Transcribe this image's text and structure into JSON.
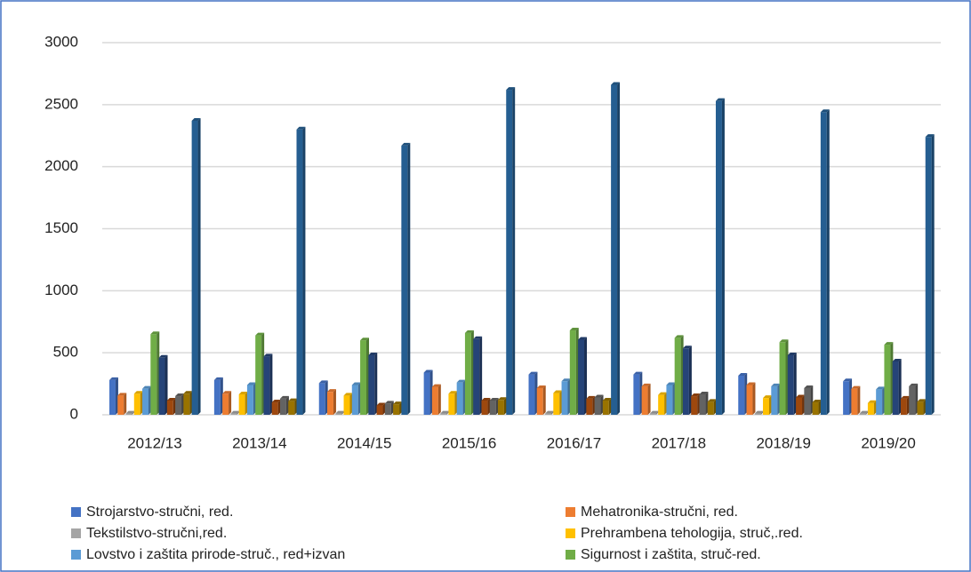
{
  "chart_data": {
    "type": "bar",
    "categories": [
      "2012/13",
      "2013/14",
      "2014/15",
      "2015/16",
      "2016/17",
      "2017/18",
      "2018/19",
      "2019/20"
    ],
    "series": [
      {
        "name": "Strojarstvo-stručni, red.",
        "color": "#4472c4",
        "values": [
          280,
          280,
          255,
          340,
          325,
          325,
          315,
          270
        ]
      },
      {
        "name": "Mehatronika-stručni, red.",
        "color": "#ed7d31",
        "values": [
          155,
          170,
          185,
          225,
          215,
          230,
          240,
          210
        ]
      },
      {
        "name": "Tekstilstvo-stručni,red.",
        "color": "#a5a5a5",
        "values": [
          10,
          10,
          10,
          10,
          10,
          10,
          10,
          10
        ]
      },
      {
        "name": "Prehrambena tehologija, struč,.red.",
        "color": "#ffc000",
        "values": [
          170,
          165,
          155,
          170,
          175,
          160,
          135,
          95
        ]
      },
      {
        "name": "Lovstvo i zaštita prirode-struč., red+izvan",
        "color": "#5b9bd5",
        "values": [
          210,
          240,
          240,
          260,
          270,
          240,
          230,
          205
        ]
      },
      {
        "name": "Sigurnost i zaštita, struč-red.",
        "color": "#70ad47",
        "values": [
          650,
          640,
          600,
          660,
          680,
          620,
          585,
          565
        ]
      },
      {
        "color": "#264478",
        "values": [
          460,
          470,
          480,
          610,
          605,
          535,
          480,
          430
        ]
      },
      {
        "color": "#9e480e",
        "values": [
          115,
          100,
          75,
          115,
          130,
          150,
          140,
          130
        ]
      },
      {
        "color": "#636363",
        "values": [
          150,
          130,
          90,
          115,
          140,
          165,
          215,
          230
        ]
      },
      {
        "color": "#997300",
        "values": [
          170,
          110,
          85,
          120,
          115,
          105,
          100,
          105
        ]
      },
      {
        "color": "#255e91",
        "values": [
          2370,
          2300,
          2170,
          2620,
          2660,
          2530,
          2440,
          2240
        ]
      }
    ],
    "ylim": [
      0,
      3000
    ],
    "yticks": [
      0,
      500,
      1000,
      1500,
      2000,
      2500,
      3000
    ],
    "grid": true
  }
}
